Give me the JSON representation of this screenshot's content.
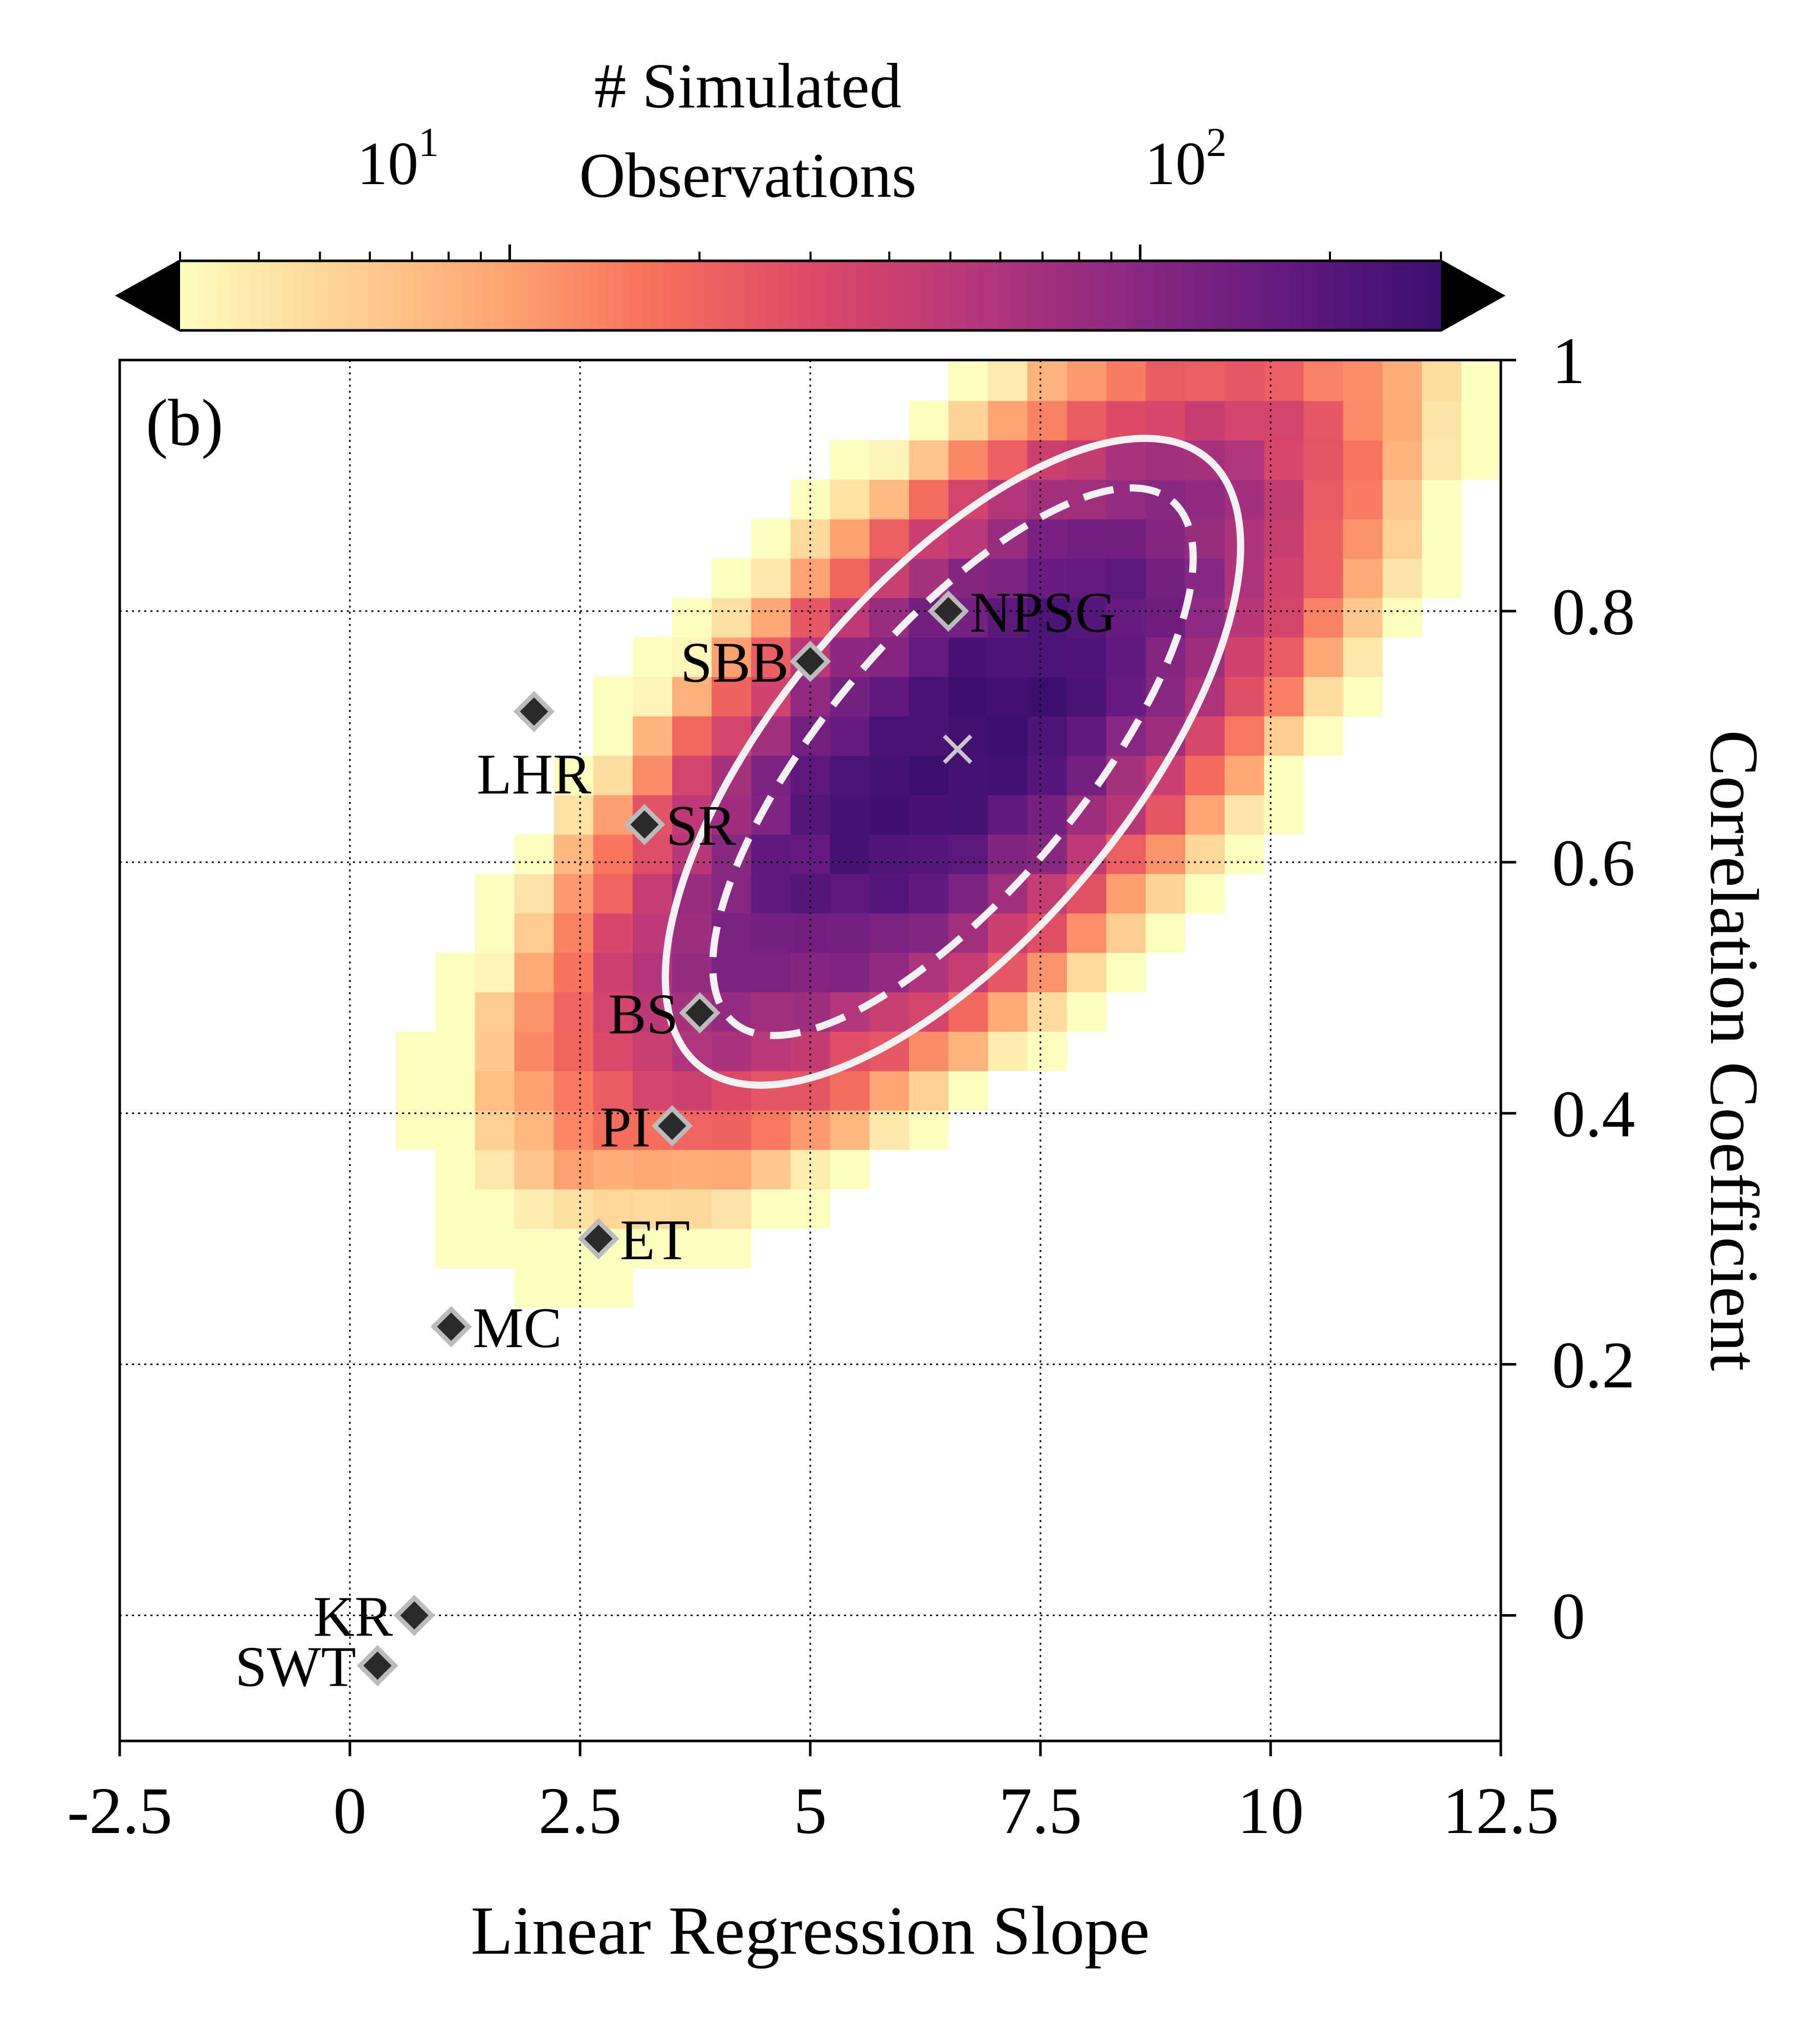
{
  "chart_data": {
    "type": "heatmap",
    "panel_label": "(b)",
    "xlabel": "Linear Regression Slope",
    "ylabel": "Correlation Coefficient",
    "xlim": [
      -2.5,
      12.5
    ],
    "ylim": [
      -0.1,
      1.0
    ],
    "x_ticks": [
      -2.5,
      0,
      2.5,
      5,
      7.5,
      10,
      12.5
    ],
    "x_tick_labels": [
      "-2.5",
      "0",
      "2.5",
      "5",
      "7.5",
      "10",
      "12.5"
    ],
    "y_ticks": [
      0,
      0.2,
      0.4,
      0.6,
      0.8,
      1.0
    ],
    "y_tick_labels": [
      "0",
      "0.2",
      "0.4",
      "0.6",
      "0.8",
      "1"
    ],
    "grid": true,
    "colorbar": {
      "label_line1": "# Simulated",
      "label_line2": "Observations",
      "scale": "log",
      "range": [
        3,
        300
      ],
      "colormap": "magma_r",
      "extend": "both",
      "major_ticks": [
        10,
        100
      ],
      "major_tick_labels": [
        {
          "base": "10",
          "exp": "1"
        },
        {
          "base": "10",
          "exp": "2"
        }
      ]
    },
    "histogram": {
      "x_bin_width": 0.4286,
      "y_bin_width": 0.0314,
      "x_bin_start": -2.5,
      "y_bin_start": -0.1,
      "center": {
        "x": 6.6,
        "y": 0.69
      },
      "sigma_x": 1.8,
      "sigma_y": 0.13,
      "correlation": 0.72,
      "peak_count": 300
    },
    "mean_marker": {
      "x": 6.6,
      "y": 0.69,
      "symbol": "x"
    },
    "ellipses": [
      {
        "name": "outer",
        "style": "solid",
        "center": [
          6.55,
          0.68
        ],
        "semi_major_x": 4.3,
        "semi_minor_x": 1.9,
        "angle_deg": 50
      },
      {
        "name": "inner",
        "style": "dashed",
        "center": [
          6.55,
          0.68
        ],
        "semi_major_x": 3.7,
        "semi_minor_x": 1.4,
        "angle_deg": 50
      }
    ],
    "sites": [
      {
        "label": "NPSG",
        "x": 6.5,
        "y": 0.8,
        "label_pos": "right"
      },
      {
        "label": "SBB",
        "x": 5.0,
        "y": 0.76,
        "label_pos": "left"
      },
      {
        "label": "LHR",
        "x": 2.0,
        "y": 0.72,
        "label_pos": "below"
      },
      {
        "label": "SR",
        "x": 3.2,
        "y": 0.63,
        "label_pos": "right"
      },
      {
        "label": "BS",
        "x": 3.8,
        "y": 0.48,
        "label_pos": "left"
      },
      {
        "label": "PI",
        "x": 3.5,
        "y": 0.39,
        "label_pos": "left"
      },
      {
        "label": "ET",
        "x": 2.7,
        "y": 0.3,
        "label_pos": "right"
      },
      {
        "label": "MC",
        "x": 1.1,
        "y": 0.23,
        "label_pos": "right"
      },
      {
        "label": "KR",
        "x": 0.7,
        "y": 0.0,
        "label_pos": "left"
      },
      {
        "label": "SWT",
        "x": 0.3,
        "y": -0.04,
        "label_pos": "left"
      }
    ],
    "colors": {
      "marker_fill": "#2a2a2a",
      "marker_edge": "#bbbbbb",
      "ellipse": "#f2f2f2",
      "mean_marker": "#c8c8c8"
    }
  }
}
